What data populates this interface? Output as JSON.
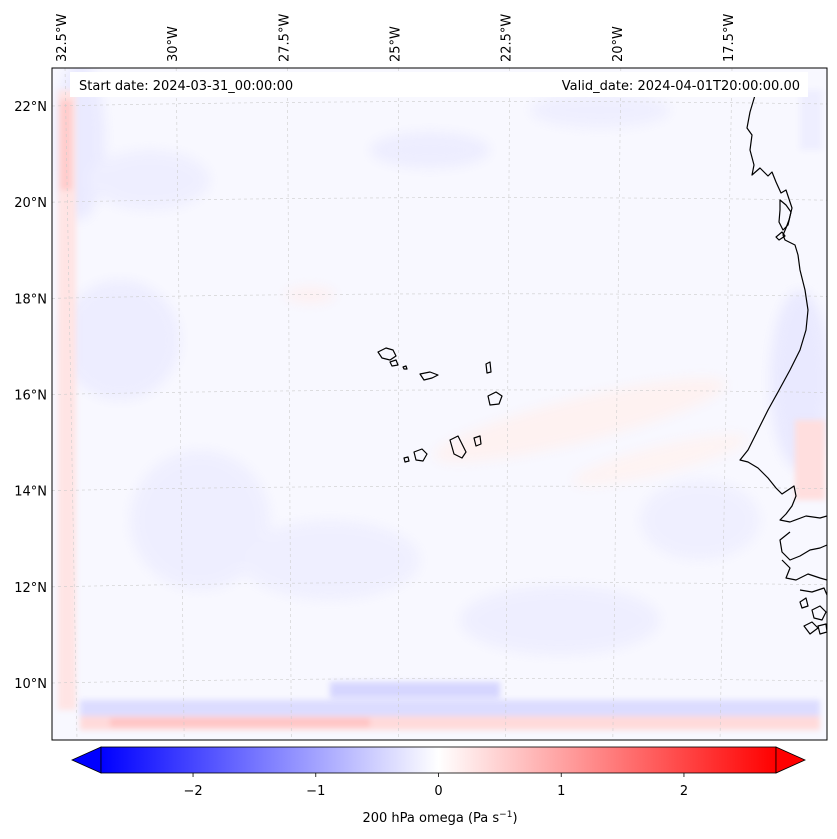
{
  "start_date": "Start date: 2024-03-31_00:00:00",
  "valid_date": "Valid_date: 2024-04-01T20:00:00.00",
  "lon_labels": [
    {
      "value": -32.5,
      "label": "32.5°W"
    },
    {
      "value": -30.0,
      "label": "30°W"
    },
    {
      "value": -27.5,
      "label": "27.5°W"
    },
    {
      "value": -25.0,
      "label": "25°W"
    },
    {
      "value": -22.5,
      "label": "22.5°W"
    },
    {
      "value": -20.0,
      "label": "20°W"
    },
    {
      "value": -17.5,
      "label": "17.5°W"
    }
  ],
  "lat_labels": [
    {
      "value": 22,
      "label": "22°N"
    },
    {
      "value": 20,
      "label": "20°N"
    },
    {
      "value": 18,
      "label": "18°N"
    },
    {
      "value": 16,
      "label": "16°N"
    },
    {
      "value": 14,
      "label": "14°N"
    },
    {
      "value": 12,
      "label": "12°N"
    },
    {
      "value": 10,
      "label": "10°N"
    }
  ],
  "colorbar": {
    "label": "200 hPa omega (Pa s",
    "label_exp": "−1",
    "label_end": ")",
    "min": -2.75,
    "max": 2.75,
    "ticks": [
      {
        "value": -2,
        "label": "−2"
      },
      {
        "value": -1,
        "label": "−1"
      },
      {
        "value": 0,
        "label": "0"
      },
      {
        "value": 1,
        "label": "1"
      },
      {
        "value": 2,
        "label": "2"
      }
    ],
    "low_color": "#0000ff",
    "mid_color": "#ffffff",
    "high_color": "#ff0000"
  },
  "colors": {
    "field_bg": "#f8f8ff",
    "coast": "#000000",
    "grid": "#cccccc"
  }
}
